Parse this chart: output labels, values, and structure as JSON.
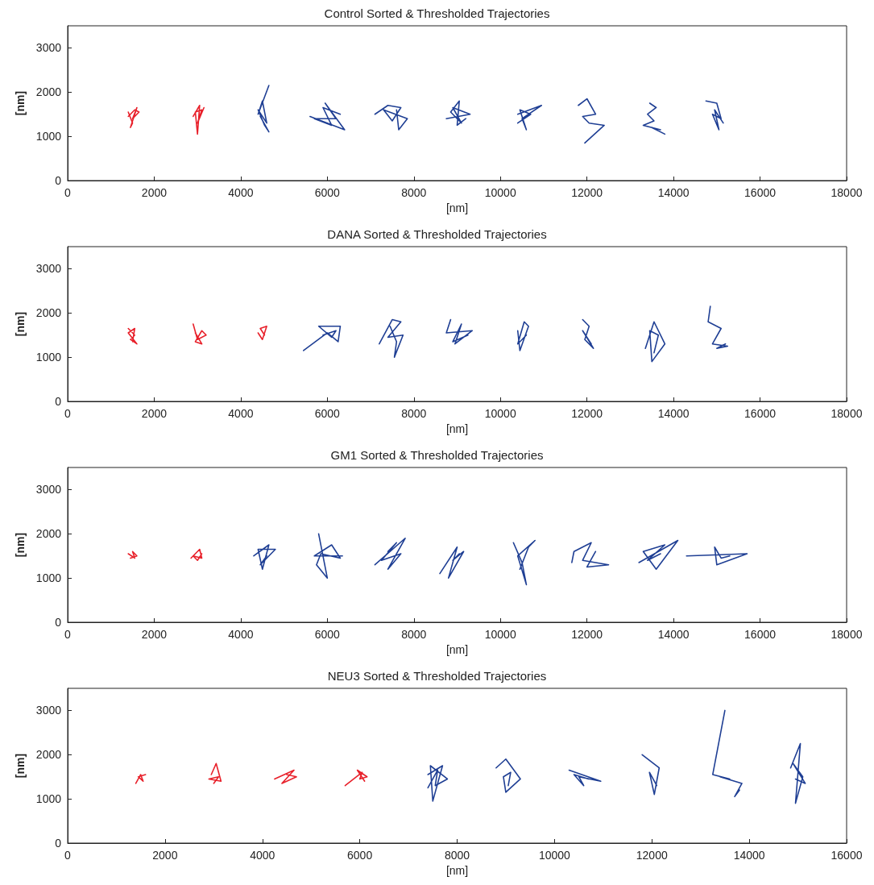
{
  "chart_data": [
    {
      "type": "line",
      "title": "Control Sorted & Thresholded Trajectories",
      "xlabel": "[nm]",
      "ylabel": "[nm]",
      "xlim": [
        0,
        18000
      ],
      "xticks": [
        0,
        2000,
        4000,
        6000,
        8000,
        10000,
        12000,
        14000,
        16000,
        18000
      ],
      "ylim": [
        0,
        3500
      ],
      "yticks": [
        0,
        1000,
        2000,
        3000
      ],
      "marker": "none",
      "line_style": "solid",
      "series": [
        {
          "color": "#e8202a",
          "x": [
            1400,
            1500,
            1450,
            1600,
            1500,
            1650,
            1550,
            1400
          ],
          "values": [
            1550,
            1300,
            1200,
            1650,
            1400,
            1550,
            1600,
            1450
          ]
        },
        {
          "color": "#e8202a",
          "x": [
            2900,
            3050,
            3000,
            2950,
            3100,
            3000,
            3150
          ],
          "values": [
            1450,
            1700,
            1050,
            1550,
            1600,
            1300,
            1650
          ]
        },
        {
          "color": "#1f3f94",
          "x": [
            4650,
            4400,
            4500,
            4600,
            4400,
            4550,
            4650,
            4450
          ],
          "values": [
            2150,
            1500,
            1800,
            1300,
            1600,
            1250,
            1100,
            1450
          ]
        },
        {
          "color": "#1f3f94",
          "x": [
            5600,
            6400,
            5950,
            6200,
            5700,
            6100,
            5900,
            6300
          ],
          "values": [
            1450,
            1150,
            1750,
            1400,
            1400,
            1250,
            1650,
            1500
          ]
        },
        {
          "color": "#1f3f94",
          "x": [
            7100,
            7400,
            7700,
            7500,
            7300,
            7850,
            7650,
            7600
          ],
          "values": [
            1500,
            1700,
            1650,
            1350,
            1600,
            1400,
            1150,
            1600
          ]
        },
        {
          "color": "#1f3f94",
          "x": [
            8750,
            9300,
            8900,
            9100,
            8850,
            9050,
            9000,
            9200
          ],
          "values": [
            1400,
            1500,
            1650,
            1300,
            1550,
            1800,
            1250,
            1400
          ]
        },
        {
          "color": "#1f3f94",
          "x": [
            10400,
            10950,
            10500,
            10600,
            10450,
            10700,
            10400
          ],
          "values": [
            1500,
            1700,
            1400,
            1150,
            1600,
            1500,
            1300
          ]
        },
        {
          "color": "#1f3f94",
          "x": [
            11800,
            12000,
            12200,
            11900,
            12050,
            12400,
            11950
          ],
          "values": [
            1700,
            1850,
            1500,
            1450,
            1300,
            1250,
            850
          ]
        },
        {
          "color": "#1f3f94",
          "x": [
            13450,
            13600,
            13400,
            13550,
            13300,
            13700,
            13500,
            13800
          ],
          "values": [
            1750,
            1650,
            1500,
            1350,
            1250,
            1150,
            1200,
            1050
          ]
        },
        {
          "color": "#1f3f94",
          "x": [
            14750,
            15000,
            15100,
            14900,
            15050,
            14950,
            15150
          ],
          "values": [
            1800,
            1750,
            1400,
            1500,
            1150,
            1600,
            1300
          ]
        }
      ]
    },
    {
      "type": "line",
      "title": "DANA Sorted & Thresholded Trajectories",
      "xlabel": "[nm]",
      "ylabel": "[nm]",
      "xlim": [
        0,
        18000
      ],
      "xticks": [
        0,
        2000,
        4000,
        6000,
        8000,
        10000,
        12000,
        14000,
        16000,
        18000
      ],
      "ylim": [
        0,
        3500
      ],
      "yticks": [
        0,
        1000,
        2000,
        3000
      ],
      "marker": "none",
      "line_style": "solid",
      "series": [
        {
          "color": "#e8202a",
          "x": [
            1400,
            1550,
            1450,
            1600,
            1400,
            1550,
            1500
          ],
          "values": [
            1650,
            1500,
            1400,
            1300,
            1550,
            1650,
            1350
          ]
        },
        {
          "color": "#e8202a",
          "x": [
            2900,
            3000,
            3200,
            3100,
            2950,
            3100,
            2950
          ],
          "values": [
            1750,
            1400,
            1500,
            1600,
            1350,
            1300,
            1550
          ]
        },
        {
          "color": "#e8202a",
          "x": [
            4400,
            4500,
            4600,
            4450,
            4550
          ],
          "values": [
            1550,
            1400,
            1700,
            1650,
            1500
          ]
        },
        {
          "color": "#1f3f94",
          "x": [
            5450,
            6000,
            6250,
            6300,
            5800,
            6100,
            6200,
            5900
          ],
          "values": [
            1150,
            1550,
            1350,
            1700,
            1700,
            1450,
            1600,
            1500
          ]
        },
        {
          "color": "#1f3f94",
          "x": [
            7200,
            7500,
            7700,
            7400,
            7750,
            7550,
            7600,
            7450
          ],
          "values": [
            1300,
            1850,
            1800,
            1450,
            1500,
            1000,
            1350,
            1700
          ]
        },
        {
          "color": "#1f3f94",
          "x": [
            8850,
            8750,
            9350,
            8950,
            9100,
            8900,
            9250
          ],
          "values": [
            1850,
            1550,
            1600,
            1300,
            1750,
            1350,
            1500
          ]
        },
        {
          "color": "#1f3f94",
          "x": [
            10400,
            10450,
            10650,
            10550,
            10400,
            10600
          ],
          "values": [
            1600,
            1150,
            1700,
            1800,
            1300,
            1500
          ]
        },
        {
          "color": "#1f3f94",
          "x": [
            11900,
            12050,
            11950,
            12150,
            11900,
            12100
          ],
          "values": [
            1850,
            1700,
            1400,
            1200,
            1600,
            1300
          ]
        },
        {
          "color": "#1f3f94",
          "x": [
            13350,
            13550,
            13800,
            13500,
            13450,
            13650,
            13550
          ],
          "values": [
            1200,
            1800,
            1300,
            900,
            1600,
            1500,
            1100
          ]
        },
        {
          "color": "#1f3f94",
          "x": [
            14850,
            14800,
            15100,
            14900,
            15250,
            15000,
            15200
          ],
          "values": [
            2150,
            1800,
            1650,
            1300,
            1250,
            1200,
            1300
          ]
        }
      ]
    },
    {
      "type": "line",
      "title": "GM1 Sorted & Thresholded Trajectories",
      "xlabel": "[nm]",
      "ylabel": "[nm]",
      "xlim": [
        0,
        18000
      ],
      "xticks": [
        0,
        2000,
        4000,
        6000,
        8000,
        10000,
        12000,
        14000,
        16000,
        18000
      ],
      "ylim": [
        0,
        3500
      ],
      "yticks": [
        0,
        1000,
        2000,
        3000
      ],
      "marker": "none",
      "line_style": "solid",
      "series": [
        {
          "color": "#e8202a",
          "x": [
            1400,
            1550,
            1500,
            1600,
            1450
          ],
          "values": [
            1550,
            1450,
            1600,
            1500,
            1450
          ]
        },
        {
          "color": "#e8202a",
          "x": [
            2850,
            3050,
            3100,
            2900,
            3000,
            3100
          ],
          "values": [
            1450,
            1650,
            1450,
            1500,
            1400,
            1550
          ]
        },
        {
          "color": "#1f3f94",
          "x": [
            4300,
            4650,
            4500,
            4400,
            4800,
            4450,
            4600
          ],
          "values": [
            1500,
            1750,
            1200,
            1650,
            1650,
            1300,
            1500
          ]
        },
        {
          "color": "#1f3f94",
          "x": [
            5800,
            6000,
            5750,
            5850,
            6300,
            6100,
            5700,
            6350
          ],
          "values": [
            2000,
            1000,
            1300,
            1550,
            1450,
            1750,
            1500,
            1500
          ]
        },
        {
          "color": "#1f3f94",
          "x": [
            7100,
            7800,
            7400,
            7700,
            7250,
            7600,
            7400
          ],
          "values": [
            1300,
            1900,
            1200,
            1550,
            1400,
            1800,
            1600
          ]
        },
        {
          "color": "#1f3f94",
          "x": [
            8600,
            9000,
            8800,
            9150,
            8900,
            9050
          ],
          "values": [
            1100,
            1700,
            1000,
            1600,
            1400,
            1550
          ]
        },
        {
          "color": "#1f3f94",
          "x": [
            10300,
            10500,
            10600,
            10400,
            10800,
            10650,
            10450
          ],
          "values": [
            1800,
            1350,
            850,
            1500,
            1850,
            1700,
            1200
          ]
        },
        {
          "color": "#1f3f94",
          "x": [
            11650,
            11700,
            12100,
            11900,
            12500,
            12000,
            12200
          ],
          "values": [
            1350,
            1600,
            1800,
            1400,
            1300,
            1250,
            1600
          ]
        },
        {
          "color": "#1f3f94",
          "x": [
            13200,
            14100,
            13600,
            13300,
            13800,
            13400,
            13700
          ],
          "values": [
            1350,
            1850,
            1200,
            1600,
            1750,
            1400,
            1550
          ]
        },
        {
          "color": "#1f3f94",
          "x": [
            14300,
            15700,
            15000,
            14950,
            15100,
            15300
          ],
          "values": [
            1500,
            1550,
            1300,
            1700,
            1450,
            1500
          ]
        }
      ]
    },
    {
      "type": "line",
      "title": "NEU3 Sorted & Thresholded Trajectories",
      "xlabel": "[nm]",
      "ylabel": "[nm]",
      "xlim": [
        0,
        16000
      ],
      "xticks": [
        0,
        2000,
        4000,
        6000,
        8000,
        10000,
        12000,
        14000,
        16000
      ],
      "ylim": [
        0,
        3500
      ],
      "yticks": [
        0,
        1000,
        2000,
        3000
      ],
      "marker": "none",
      "line_style": "solid",
      "series": [
        {
          "color": "#e8202a",
          "x": [
            1400,
            1500,
            1550,
            1450,
            1600
          ],
          "values": [
            1350,
            1550,
            1400,
            1500,
            1550
          ]
        },
        {
          "color": "#e8202a",
          "x": [
            2950,
            3050,
            3150,
            2900,
            3100,
            3000
          ],
          "values": [
            1550,
            1800,
            1400,
            1450,
            1500,
            1350
          ]
        },
        {
          "color": "#e8202a",
          "x": [
            4250,
            4650,
            4400,
            4700,
            4500
          ],
          "values": [
            1450,
            1650,
            1350,
            1500,
            1550
          ]
        },
        {
          "color": "#e8202a",
          "x": [
            5700,
            6050,
            6000,
            6150,
            5950,
            6100
          ],
          "values": [
            1300,
            1600,
            1450,
            1500,
            1650,
            1400
          ]
        },
        {
          "color": "#1f3f94",
          "x": [
            7400,
            7700,
            7500,
            7450,
            7800,
            7550,
            7600,
            7400
          ],
          "values": [
            1550,
            1750,
            950,
            1750,
            1450,
            1300,
            1650,
            1250
          ]
        },
        {
          "color": "#1f3f94",
          "x": [
            8800,
            9000,
            9300,
            9000,
            8950,
            9100,
            9050
          ],
          "values": [
            1700,
            1900,
            1450,
            1150,
            1500,
            1600,
            1300
          ]
        },
        {
          "color": "#1f3f94",
          "x": [
            10300,
            10950,
            10500,
            10600,
            10400,
            10700
          ],
          "values": [
            1650,
            1400,
            1500,
            1300,
            1550,
            1450
          ]
        },
        {
          "color": "#1f3f94",
          "x": [
            11800,
            12150,
            12050,
            11950,
            12100,
            12000
          ],
          "values": [
            2000,
            1700,
            1100,
            1600,
            1300,
            1500
          ]
        },
        {
          "color": "#1f3f94",
          "x": [
            13500,
            13250,
            13600,
            13400,
            13850,
            13700,
            13800
          ],
          "values": [
            3000,
            1550,
            1450,
            1500,
            1350,
            1050,
            1200
          ]
        },
        {
          "color": "#1f3f94",
          "x": [
            14850,
            15050,
            14950,
            15100,
            14900,
            15150,
            14950
          ],
          "values": [
            1700,
            2250,
            900,
            1500,
            1800,
            1350,
            1450
          ]
        }
      ]
    }
  ]
}
